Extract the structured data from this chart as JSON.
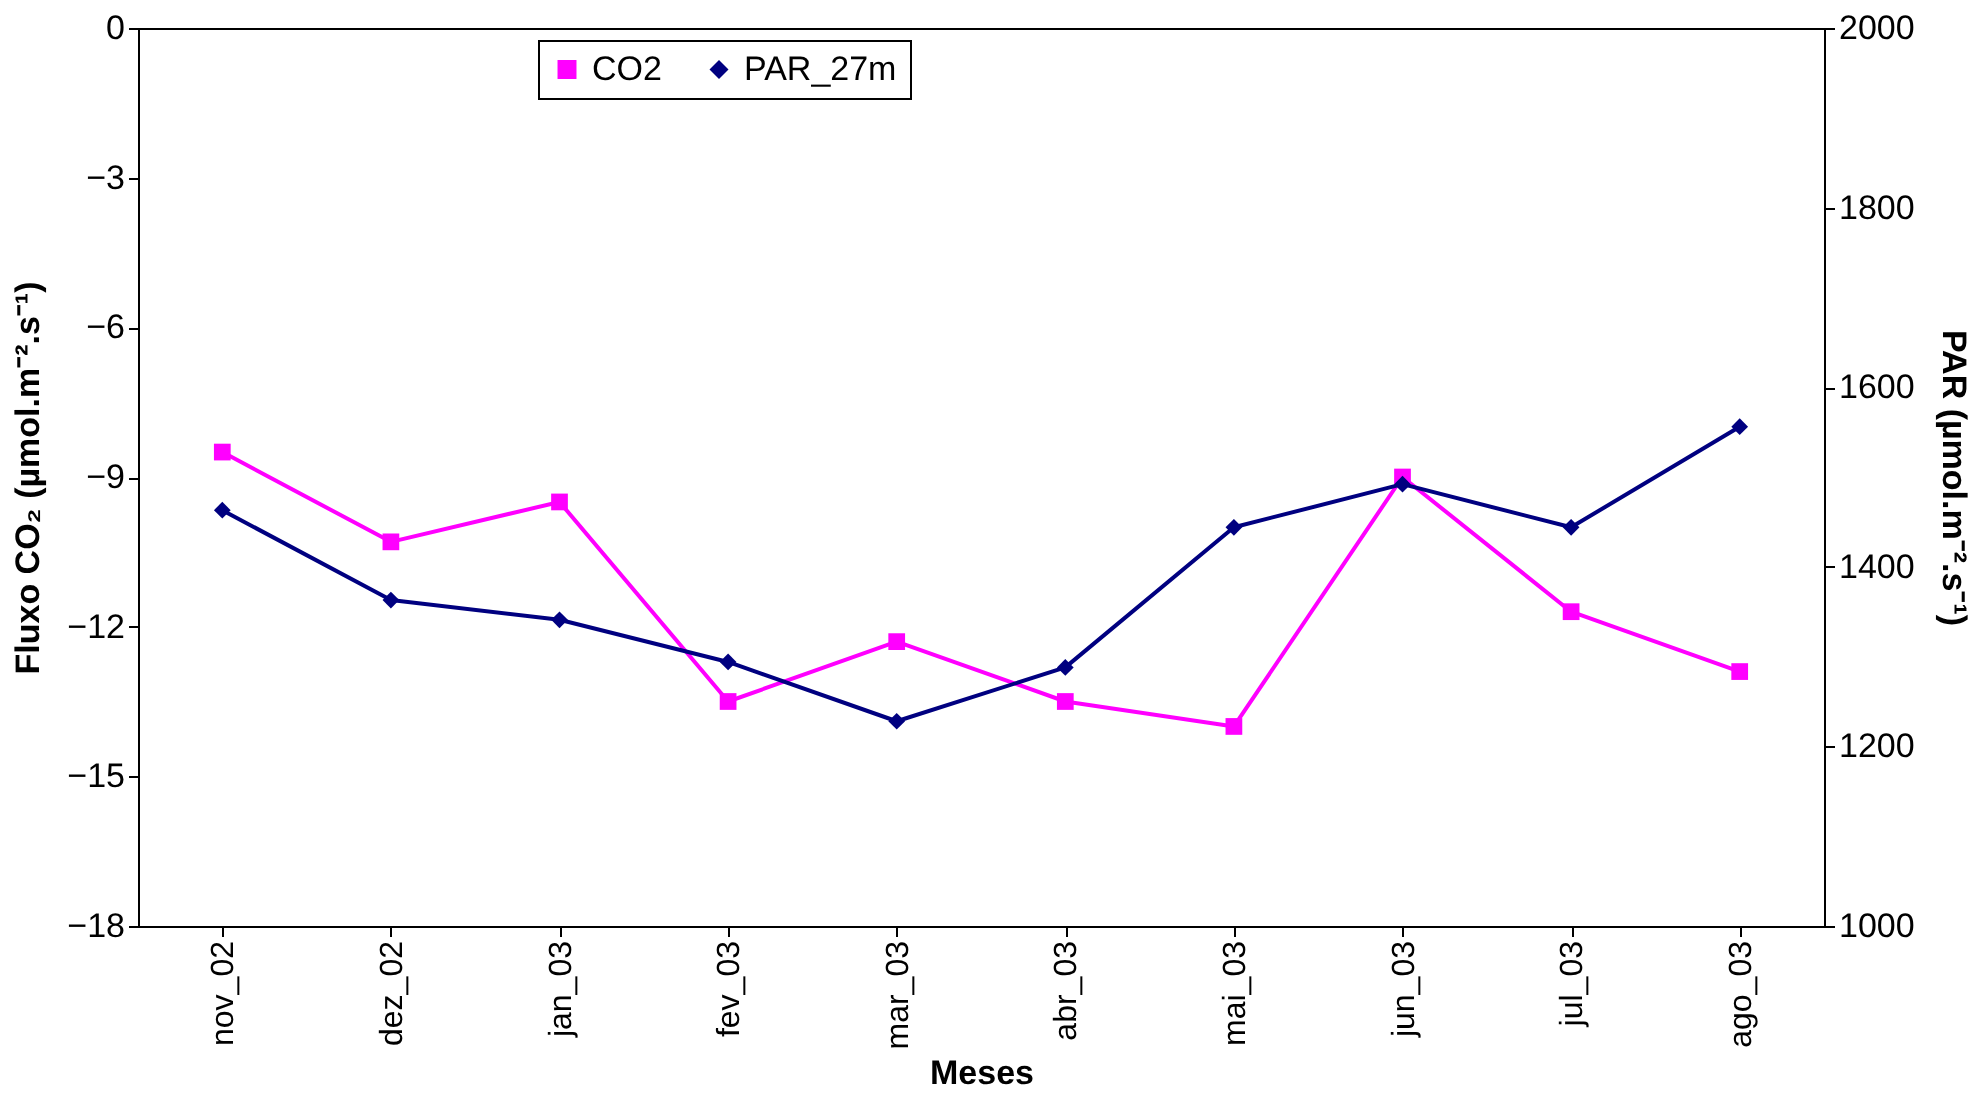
{
  "chart_data": {
    "type": "line",
    "xlabel": "Meses",
    "ylabel": "Fluxo CO₂ (µmol.m⁻².s⁻¹)",
    "y2label": "PAR (µmol.m⁻².s⁻¹)",
    "categories": [
      "nov_02",
      "dez_02",
      "jan_03",
      "fev_03",
      "mar_03",
      "abr_03",
      "mai_03",
      "jun_03",
      "jul_03",
      "ago_03"
    ],
    "ylim": [
      -18,
      0
    ],
    "yticks": [
      -18,
      -15,
      -12,
      -9,
      -6,
      -3,
      0
    ],
    "y2lim": [
      1000,
      2000
    ],
    "y2ticks": [
      1000,
      1200,
      1400,
      1600,
      1800,
      2000
    ],
    "grid": false,
    "legend": "top",
    "line_style": "solid",
    "series": [
      {
        "name": "CO2",
        "color": "#ff00ff",
        "marker": "square",
        "values": [
          -8.5,
          -10.3,
          -9.5,
          -13.5,
          -12.3,
          -13.5,
          -14.0,
          -9.0,
          -11.7,
          -12.9
        ]
      },
      {
        "name": "PAR_27m",
        "color": "#000080",
        "marker": "diamond",
        "axis": "y2",
        "values": [
          1463,
          1363,
          1341,
          1294,
          1228,
          1288,
          1444,
          1492,
          1444,
          1556
        ]
      }
    ]
  }
}
